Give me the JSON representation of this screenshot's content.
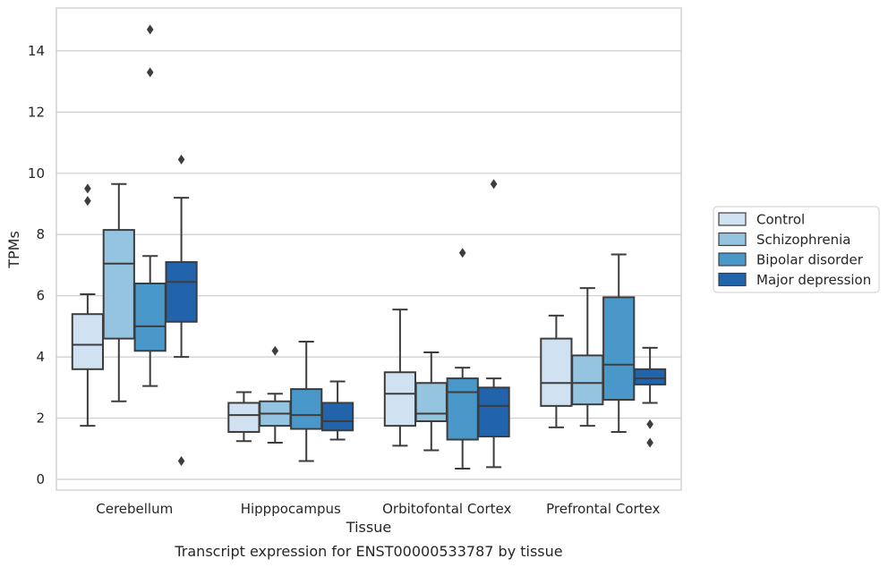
{
  "caption": "Transcript expression for ENST00000533787 by tissue",
  "chart_data": {
    "type": "boxplot",
    "title": "",
    "xlabel": "Tissue",
    "ylabel": "TPMs",
    "ylim": [
      -0.35,
      15.4
    ],
    "yticks": [
      0,
      2,
      4,
      6,
      8,
      10,
      12,
      14
    ],
    "grid": "horizontal",
    "legend_position": "right",
    "categories": [
      "Cerebellum",
      "Hipppocampus",
      "Orbitofontal Cortex",
      "Prefrontal Cortex"
    ],
    "series": [
      {
        "name": "Control",
        "color": "#d0e1f2",
        "boxes": [
          {
            "whisker_low": 1.75,
            "q1": 3.6,
            "median": 4.4,
            "q3": 5.4,
            "whisker_high": 6.05,
            "outliers": [
              9.1,
              9.5
            ]
          },
          {
            "whisker_low": 1.25,
            "q1": 1.55,
            "median": 2.1,
            "q3": 2.5,
            "whisker_high": 2.85,
            "outliers": []
          },
          {
            "whisker_low": 1.1,
            "q1": 1.75,
            "median": 2.8,
            "q3": 3.5,
            "whisker_high": 5.55,
            "outliers": []
          },
          {
            "whisker_low": 1.7,
            "q1": 2.4,
            "median": 3.15,
            "q3": 4.6,
            "whisker_high": 5.35,
            "outliers": []
          }
        ]
      },
      {
        "name": "Schizophrenia",
        "color": "#94c4df",
        "boxes": [
          {
            "whisker_low": 2.55,
            "q1": 4.6,
            "median": 7.05,
            "q3": 8.15,
            "whisker_high": 9.65,
            "outliers": []
          },
          {
            "whisker_low": 1.2,
            "q1": 1.75,
            "median": 2.15,
            "q3": 2.55,
            "whisker_high": 2.8,
            "outliers": [
              4.2
            ]
          },
          {
            "whisker_low": 0.95,
            "q1": 1.9,
            "median": 2.15,
            "q3": 3.15,
            "whisker_high": 4.15,
            "outliers": []
          },
          {
            "whisker_low": 1.75,
            "q1": 2.45,
            "median": 3.15,
            "q3": 4.05,
            "whisker_high": 6.25,
            "outliers": []
          }
        ]
      },
      {
        "name": "Bipolar disorder",
        "color": "#4a98c9",
        "boxes": [
          {
            "whisker_low": 3.05,
            "q1": 4.2,
            "median": 5.0,
            "q3": 6.4,
            "whisker_high": 7.3,
            "outliers": [
              13.3,
              14.7
            ]
          },
          {
            "whisker_low": 0.6,
            "q1": 1.65,
            "median": 2.1,
            "q3": 2.95,
            "whisker_high": 4.5,
            "outliers": []
          },
          {
            "whisker_low": 0.35,
            "q1": 1.3,
            "median": 2.85,
            "q3": 3.3,
            "whisker_high": 3.65,
            "outliers": [
              7.4
            ]
          },
          {
            "whisker_low": 1.55,
            "q1": 2.6,
            "median": 3.75,
            "q3": 5.95,
            "whisker_high": 7.35,
            "outliers": []
          }
        ]
      },
      {
        "name": "Major depression",
        "color": "#2164ab",
        "boxes": [
          {
            "whisker_low": 4.0,
            "q1": 5.15,
            "median": 6.45,
            "q3": 7.1,
            "whisker_high": 9.2,
            "outliers": [
              0.6,
              10.45
            ]
          },
          {
            "whisker_low": 1.3,
            "q1": 1.6,
            "median": 1.9,
            "q3": 2.5,
            "whisker_high": 3.2,
            "outliers": []
          },
          {
            "whisker_low": 0.4,
            "q1": 1.4,
            "median": 2.4,
            "q3": 3.0,
            "whisker_high": 3.3,
            "outliers": [
              9.65
            ]
          },
          {
            "whisker_low": 2.5,
            "q1": 3.1,
            "median": 3.3,
            "q3": 3.6,
            "whisker_high": 4.3,
            "outliers": [
              1.2,
              1.8
            ]
          }
        ]
      }
    ]
  }
}
